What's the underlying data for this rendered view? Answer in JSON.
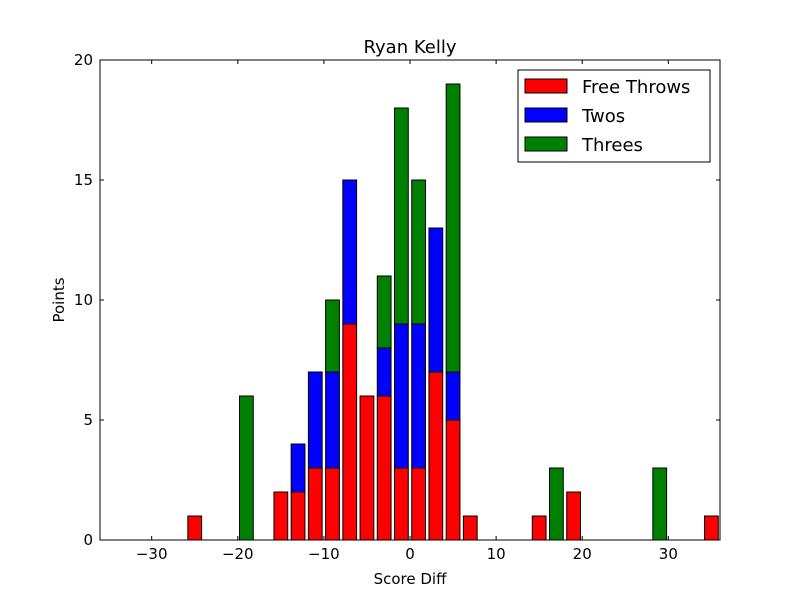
{
  "chart_data": {
    "type": "bar",
    "stacked": true,
    "title": "Ryan Kelly",
    "xlabel": "Score Diff",
    "ylabel": "Points",
    "xlim": [
      -36,
      36
    ],
    "ylim": [
      0,
      20
    ],
    "xticks": [
      -30,
      -20,
      -10,
      0,
      10,
      20,
      30
    ],
    "xtick_labels": [
      "−30",
      "−20",
      "−10",
      "0",
      "10",
      "20",
      "30"
    ],
    "yticks": [
      0,
      5,
      10,
      15,
      20
    ],
    "ytick_labels": [
      "0",
      "5",
      "10",
      "15",
      "20"
    ],
    "bar_width": 1.6,
    "legend": {
      "placement": "top-right"
    },
    "x": [
      -35,
      -33,
      -31,
      -29,
      -27,
      -25,
      -23,
      -21,
      -19,
      -17,
      -15,
      -13,
      -11,
      -9,
      -7,
      -5,
      -3,
      -1,
      1,
      3,
      5,
      7,
      9,
      11,
      13,
      15,
      17,
      19,
      21,
      23,
      25,
      27,
      29,
      31,
      33,
      35
    ],
    "series": [
      {
        "name": "Free Throws",
        "color": "#ff0000",
        "values": [
          0,
          0,
          0,
          0,
          0,
          1,
          0,
          0,
          0,
          0,
          2,
          2,
          3,
          3,
          9,
          6,
          6,
          3,
          3,
          7,
          5,
          1,
          0,
          0,
          0,
          1,
          0,
          2,
          0,
          0,
          0,
          0,
          0,
          0,
          0,
          1
        ]
      },
      {
        "name": "Twos",
        "color": "#0000ff",
        "values": [
          0,
          0,
          0,
          0,
          0,
          0,
          0,
          0,
          0,
          0,
          0,
          2,
          4,
          4,
          6,
          0,
          2,
          6,
          6,
          6,
          2,
          0,
          0,
          0,
          0,
          0,
          0,
          0,
          0,
          0,
          0,
          0,
          0,
          0,
          0,
          0
        ]
      },
      {
        "name": "Threes",
        "color": "#008000",
        "values": [
          0,
          0,
          0,
          0,
          0,
          0,
          0,
          0,
          6,
          0,
          0,
          0,
          0,
          3,
          0,
          0,
          3,
          9,
          6,
          0,
          12,
          0,
          0,
          0,
          0,
          0,
          3,
          0,
          0,
          0,
          0,
          0,
          3,
          0,
          0,
          0
        ]
      }
    ]
  }
}
